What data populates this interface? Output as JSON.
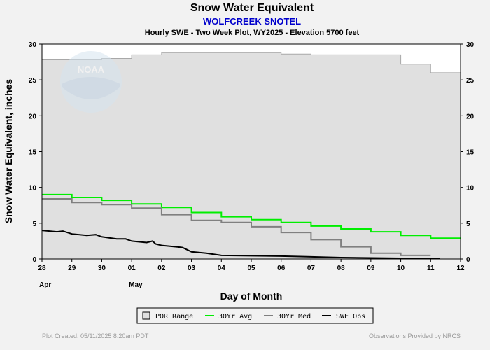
{
  "chart_data": {
    "type": "line",
    "title": "Snow Water Equivalent",
    "subtitle": "WOLFCREEK SNOTEL",
    "subtitle2": "Hourly SWE - Two Week Plot, WY2025 -  Elevation 5700 feet",
    "xlabel": "Day of Month",
    "ylabel": "Snow Water Equivalent, inches",
    "x_ticks": [
      "28",
      "29",
      "30",
      "01",
      "02",
      "03",
      "04",
      "05",
      "06",
      "07",
      "08",
      "09",
      "10",
      "11",
      "12"
    ],
    "month_labels": [
      {
        "label": "Apr",
        "at_day_index": 0
      },
      {
        "label": "May",
        "at_day_index": 3
      }
    ],
    "y_ticks": [
      "0",
      "5",
      "10",
      "15",
      "20",
      "25",
      "30"
    ],
    "ylim": [
      0,
      30
    ],
    "xlim_days": [
      0,
      14
    ],
    "grid": false,
    "right_axis": true,
    "legend_placement": "bottom-center",
    "series": [
      {
        "name": "POR Range",
        "style": "area",
        "color": "#e0e0e0",
        "edge_color": "#a8a8a8",
        "upper": [
          [
            0,
            27.8
          ],
          [
            1,
            27.8
          ],
          [
            2,
            28
          ],
          [
            3,
            28.5
          ],
          [
            4,
            28.8
          ],
          [
            5,
            28.8
          ],
          [
            6,
            28.8
          ],
          [
            7,
            28.8
          ],
          [
            8,
            28.6
          ],
          [
            9,
            28.5
          ],
          [
            10,
            28.5
          ],
          [
            11,
            28.5
          ],
          [
            12,
            27.2
          ],
          [
            13,
            26
          ],
          [
            14,
            26
          ]
        ]
      },
      {
        "name": "30Yr Avg",
        "style": "line",
        "color": "#00ee00",
        "points": [
          [
            0,
            9
          ],
          [
            1,
            8.6
          ],
          [
            2,
            8.2
          ],
          [
            3,
            7.7
          ],
          [
            4,
            7.2
          ],
          [
            5,
            6.5
          ],
          [
            6,
            5.9
          ],
          [
            7,
            5.5
          ],
          [
            8,
            5.1
          ],
          [
            9,
            4.6
          ],
          [
            10,
            4.2
          ],
          [
            11,
            3.8
          ],
          [
            12,
            3.3
          ],
          [
            13,
            2.9
          ],
          [
            14,
            2.9
          ]
        ]
      },
      {
        "name": "30Yr Med",
        "style": "line",
        "color": "#808080",
        "points": [
          [
            0,
            8.4
          ],
          [
            1,
            7.9
          ],
          [
            2,
            7.6
          ],
          [
            3,
            7.1
          ],
          [
            4,
            6.2
          ],
          [
            5,
            5.4
          ],
          [
            6,
            5.1
          ],
          [
            7,
            4.5
          ],
          [
            8,
            3.7
          ],
          [
            9,
            2.7
          ],
          [
            10,
            1.7
          ],
          [
            11,
            0.8
          ],
          [
            12,
            0.5
          ],
          [
            13,
            0.5
          ]
        ]
      },
      {
        "name": "SWE Obs",
        "style": "line",
        "color": "#000000",
        "points": [
          [
            0,
            4
          ],
          [
            0.5,
            3.8
          ],
          [
            0.7,
            3.9
          ],
          [
            1,
            3.5
          ],
          [
            1.5,
            3.3
          ],
          [
            1.8,
            3.4
          ],
          [
            2,
            3.1
          ],
          [
            2.5,
            2.8
          ],
          [
            2.8,
            2.8
          ],
          [
            3,
            2.5
          ],
          [
            3.5,
            2.3
          ],
          [
            3.7,
            2.5
          ],
          [
            3.8,
            2.1
          ],
          [
            4,
            1.9
          ],
          [
            4.5,
            1.7
          ],
          [
            4.7,
            1.6
          ],
          [
            5,
            1
          ],
          [
            5.5,
            0.8
          ],
          [
            6,
            0.5
          ],
          [
            7,
            0.45
          ],
          [
            8,
            0.4
          ],
          [
            9,
            0.3
          ],
          [
            10,
            0.2
          ],
          [
            11,
            0.15
          ],
          [
            12,
            0.1
          ],
          [
            13,
            0.05
          ],
          [
            13.3,
            0.05
          ]
        ]
      }
    ]
  },
  "footer": {
    "left": "Plot Created: 05/11/2025 8:20am PDT",
    "right": "Observations Provided by NRCS"
  },
  "watermark": {
    "noaa_logo_text": "NOAA"
  }
}
